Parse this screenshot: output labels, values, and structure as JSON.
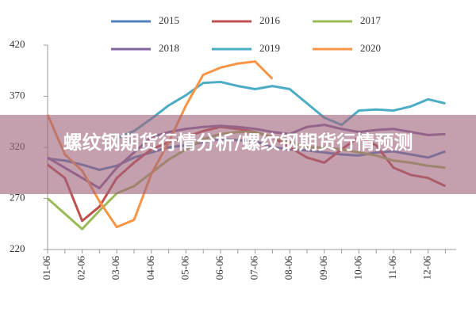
{
  "chart_data": {
    "type": "line",
    "categories": [
      "01-06",
      null,
      "02-06",
      null,
      "03-06",
      null,
      "04-06",
      null,
      "05-06",
      null,
      "06-06",
      null,
      "07-06",
      null,
      "08-06",
      null,
      "09-06",
      null,
      "10-06",
      null,
      "11-06",
      null,
      "12-06",
      null
    ],
    "ylim": [
      220,
      420
    ],
    "yticks": [
      220,
      270,
      320,
      370,
      420
    ],
    "series": [
      {
        "name": "2015",
        "color": "#4f81bd",
        "values": [
          309,
          307,
          303,
          298,
          302,
          310,
          315,
          320,
          322,
          325,
          328,
          327,
          326,
          320,
          318,
          317,
          315,
          313,
          312,
          315,
          316,
          313,
          310,
          316
        ]
      },
      {
        "name": "2016",
        "color": "#c0504d",
        "values": [
          303,
          290,
          248,
          262,
          290,
          305,
          318,
          325,
          330,
          336,
          340,
          338,
          335,
          330,
          320,
          310,
          305,
          318,
          330,
          322,
          300,
          293,
          290,
          282
        ]
      },
      {
        "name": "2017",
        "color": "#9bbb59",
        "values": [
          270,
          255,
          240,
          258,
          275,
          282,
          295,
          308,
          318,
          328,
          333,
          335,
          335,
          330,
          325,
          320,
          320,
          318,
          315,
          312,
          307,
          305,
          302,
          300
        ]
      },
      {
        "name": "2018",
        "color": "#8064a2",
        "values": [
          310,
          300,
          290,
          280,
          300,
          315,
          330,
          335,
          338,
          340,
          341,
          340,
          338,
          335,
          333,
          340,
          342,
          338,
          335,
          337,
          338,
          335,
          332,
          333
        ]
      },
      {
        "name": "2019",
        "color": "#4bacc6",
        "values": [
          null,
          null,
          null,
          null,
          329,
          336,
          348,
          361,
          371,
          383,
          384,
          380,
          377,
          380,
          377,
          363,
          349,
          342,
          356,
          357,
          356,
          360,
          367,
          363
        ]
      },
      {
        "name": "2020",
        "color": "#f79646",
        "values": [
          352,
          313,
          297,
          267,
          242,
          249,
          294,
          325,
          361,
          391,
          398,
          402,
          404,
          387,
          null,
          null,
          null,
          null,
          null,
          null,
          null,
          null,
          null,
          null
        ]
      }
    ]
  },
  "banner": {
    "title": "螺纹钢期货行情分析/螺纹钢期货行情预测"
  }
}
